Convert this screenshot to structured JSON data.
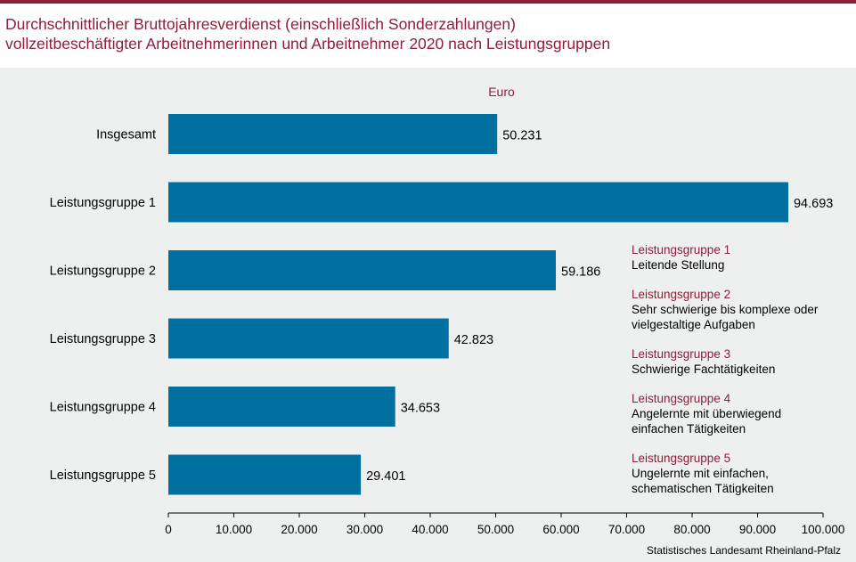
{
  "title_line1": "Durchschnittlicher Bruttojahresverdienst (einschließlich Sonderzahlungen)",
  "title_line2": "vollzeitbeschäftigter Arbeitnehmerinnen und Arbeitnehmer 2020 nach Leistungsgruppen",
  "source": "Statistisches Landesamt  Rheinland-Pfalz",
  "colors": {
    "bar": "#0070a0",
    "accent": "#8c1f3a",
    "background": "#eef0ef"
  },
  "chart_data": {
    "type": "bar",
    "orientation": "horizontal",
    "unit_label": "Euro",
    "categories": [
      "Insgesamt",
      "Leistungsgruppe 1",
      "Leistungsgruppe 2",
      "Leistungsgruppe 3",
      "Leistungsgruppe 4",
      "Leistungsgruppe 5"
    ],
    "values": [
      50231,
      94693,
      59186,
      42823,
      34653,
      29401
    ],
    "value_labels": [
      "50.231",
      "94.693",
      "59.186",
      "42.823",
      "34.653",
      "29.401"
    ],
    "xlim": [
      0,
      100000
    ],
    "xticks": [
      0,
      10000,
      20000,
      30000,
      40000,
      50000,
      60000,
      70000,
      80000,
      90000,
      100000
    ],
    "xtick_labels": [
      "0",
      "10.000",
      "20.000",
      "30.000",
      "40.000",
      "50.000",
      "60.000",
      "70.000",
      "80.000",
      "90.000",
      "100.000"
    ],
    "grid": false
  },
  "legend": [
    {
      "name": "Leistungsgruppe 1",
      "desc": "Leitende Stellung"
    },
    {
      "name": "Leistungsgruppe 2",
      "desc": "Sehr schwierige bis komplexe oder vielgestaltige Aufgaben"
    },
    {
      "name": "Leistungsgruppe 3",
      "desc": "Schwierige Fachtätigkeiten"
    },
    {
      "name": "Leistungsgruppe 4",
      "desc": "Angelernte  mit überwiegend einfachen Tätigkeiten"
    },
    {
      "name": "Leistungsgruppe 5",
      "desc": "Ungelernte  mit einfachen, schematischen Tätigkeiten"
    }
  ]
}
